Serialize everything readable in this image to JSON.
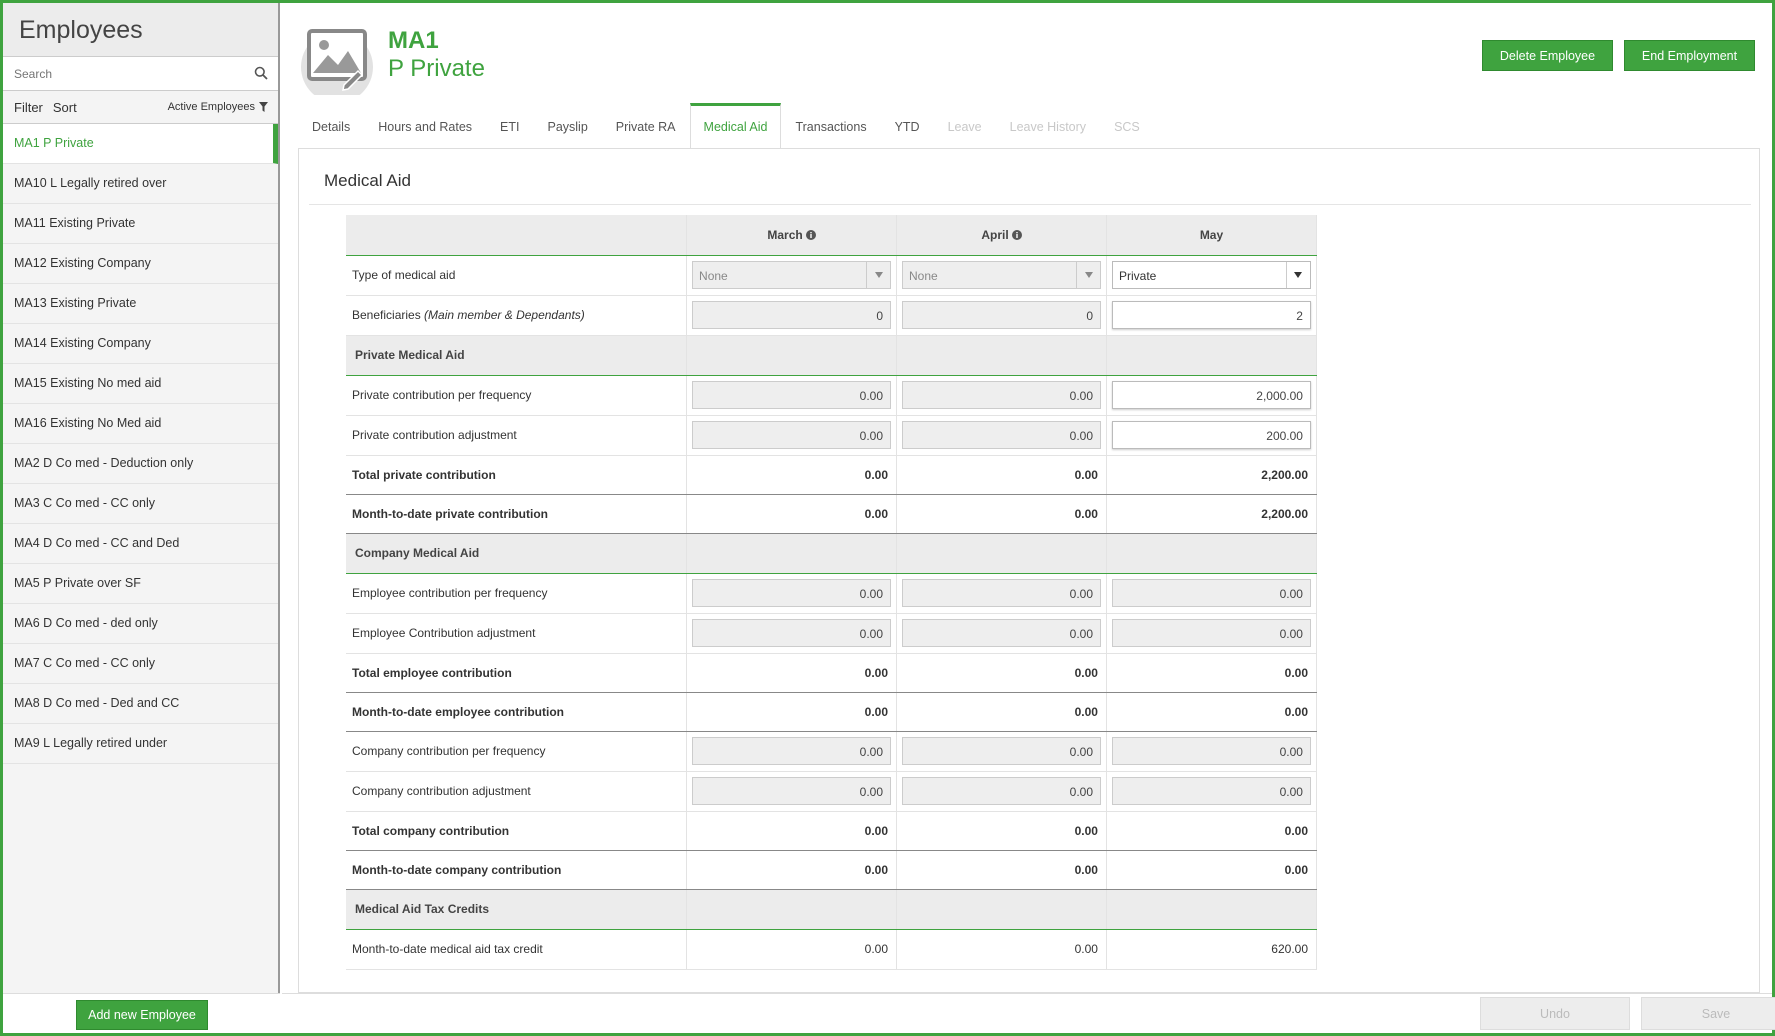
{
  "sidebar": {
    "title": "Employees",
    "search_placeholder": "Search",
    "filter_label": "Filter",
    "sort_label": "Sort",
    "active_filter": "Active Employees",
    "employees": [
      "MA1 P Private",
      "MA10 L Legally retired over",
      "MA11 Existing Private",
      "MA12 Existing Company",
      "MA13 Existing Private",
      "MA14 Existing Company",
      "MA15 Existing No med aid",
      "MA16 Existing No Med aid",
      "MA2 D Co med - Deduction only",
      "MA3 C Co med - CC only",
      "MA4 D Co med - CC and Ded",
      "MA5 P Private over SF",
      "MA6 D Co med - ded only",
      "MA7 C Co med - CC only",
      "MA8 D Co med - Ded and CC",
      "MA9 L Legally retired under"
    ],
    "add_button": "Add new Employee"
  },
  "header": {
    "code": "MA1",
    "name": "P Private",
    "delete_button": "Delete Employee",
    "end_button": "End Employment"
  },
  "tabs": [
    {
      "label": "Details",
      "state": "normal"
    },
    {
      "label": "Hours and Rates",
      "state": "normal"
    },
    {
      "label": "ETI",
      "state": "normal"
    },
    {
      "label": "Payslip",
      "state": "normal"
    },
    {
      "label": "Private RA",
      "state": "normal"
    },
    {
      "label": "Medical Aid",
      "state": "active"
    },
    {
      "label": "Transactions",
      "state": "normal"
    },
    {
      "label": "YTD",
      "state": "normal"
    },
    {
      "label": "Leave",
      "state": "disabled"
    },
    {
      "label": "Leave History",
      "state": "disabled"
    },
    {
      "label": "SCS",
      "state": "disabled"
    }
  ],
  "panel": {
    "title": "Medical Aid",
    "months": [
      "March",
      "April",
      "May"
    ],
    "type_row": {
      "label": "Type of medical aid",
      "values": [
        "None",
        "None",
        "Private"
      ]
    },
    "beneficiaries_row": {
      "label": "Beneficiaries",
      "label_note": "(Main member & Dependants)",
      "values": [
        "0",
        "0",
        "2"
      ]
    },
    "sections": {
      "private": "Private Medical Aid",
      "company": "Company Medical Aid",
      "tax": "Medical Aid Tax Credits"
    },
    "private_rows": {
      "per_freq": {
        "label": "Private contribution per frequency",
        "values": [
          "0.00",
          "0.00",
          "2,000.00"
        ]
      },
      "adjustment": {
        "label": "Private contribution adjustment",
        "values": [
          "0.00",
          "0.00",
          "200.00"
        ]
      },
      "total": {
        "label": "Total private contribution",
        "values": [
          "0.00",
          "0.00",
          "2,200.00"
        ]
      },
      "mtd": {
        "label": "Month-to-date private contribution",
        "values": [
          "0.00",
          "0.00",
          "2,200.00"
        ]
      }
    },
    "company_rows": {
      "emp_per_freq": {
        "label": "Employee contribution per frequency",
        "values": [
          "0.00",
          "0.00",
          "0.00"
        ]
      },
      "emp_adjustment": {
        "label": "Employee Contribution adjustment",
        "values": [
          "0.00",
          "0.00",
          "0.00"
        ]
      },
      "emp_total": {
        "label": "Total employee contribution",
        "values": [
          "0.00",
          "0.00",
          "0.00"
        ]
      },
      "emp_mtd": {
        "label": "Month-to-date employee contribution",
        "values": [
          "0.00",
          "0.00",
          "0.00"
        ]
      },
      "co_per_freq": {
        "label": "Company contribution per frequency",
        "values": [
          "0.00",
          "0.00",
          "0.00"
        ]
      },
      "co_adjustment": {
        "label": "Company contribution adjustment",
        "values": [
          "0.00",
          "0.00",
          "0.00"
        ]
      },
      "co_total": {
        "label": "Total company contribution",
        "values": [
          "0.00",
          "0.00",
          "0.00"
        ]
      },
      "co_mtd": {
        "label": "Month-to-date company contribution",
        "values": [
          "0.00",
          "0.00",
          "0.00"
        ]
      }
    },
    "tax_rows": {
      "mtd_credit": {
        "label": "Month-to-date medical aid tax credit",
        "values": [
          "0.00",
          "0.00",
          "620.00"
        ]
      }
    }
  },
  "footer": {
    "undo_button": "Undo",
    "save_button": "Save"
  },
  "colors": {
    "accent": "#3fa33f"
  }
}
